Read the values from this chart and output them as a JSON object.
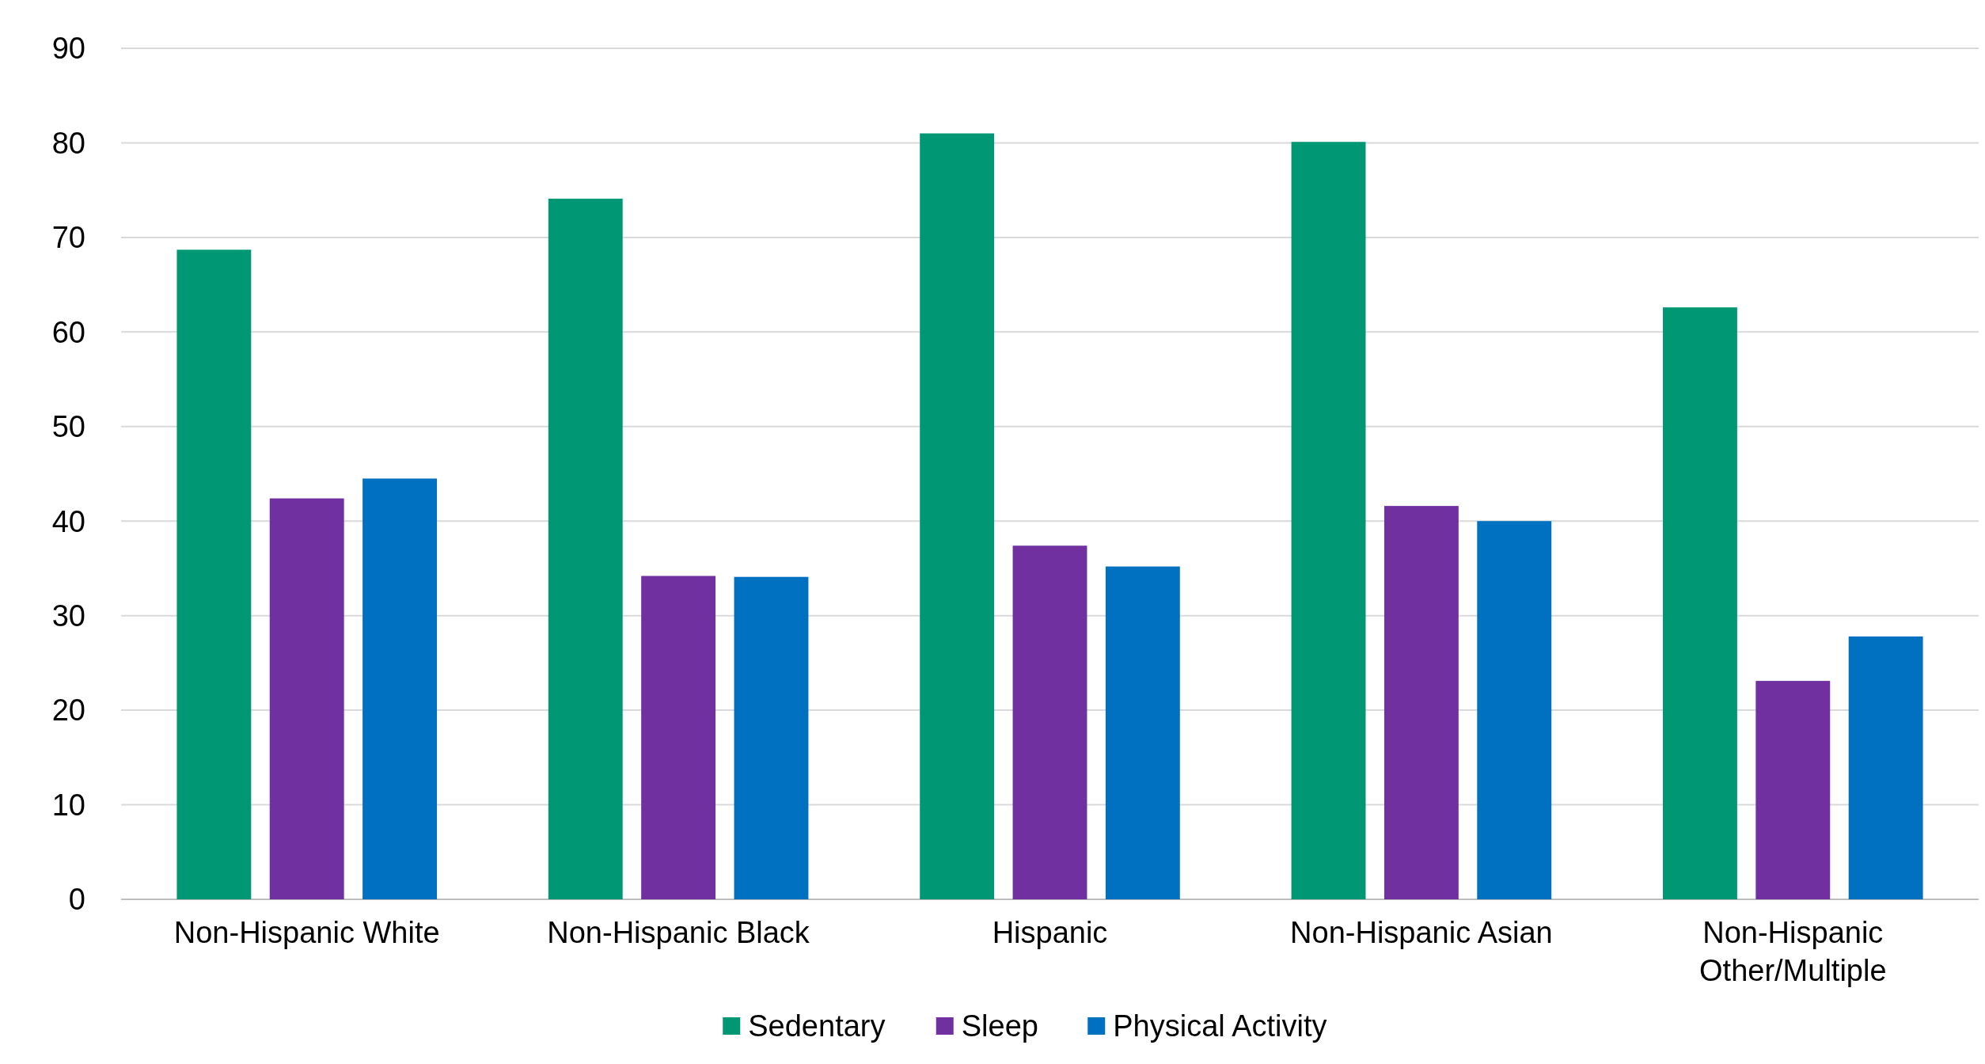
{
  "chart_data": {
    "type": "bar",
    "categories": [
      "Non-Hispanic White",
      "Non-Hispanic Black",
      "Hispanic",
      "Non-Hispanic Asian",
      "Non-Hispanic Other/Multiple"
    ],
    "series": [
      {
        "name": "Sedentary",
        "color": "#009874",
        "values": [
          68.7,
          74.1,
          81.0,
          80.1,
          62.6
        ]
      },
      {
        "name": "Sleep",
        "color": "#7030a0",
        "values": [
          42.4,
          34.2,
          37.4,
          41.6,
          23.1
        ]
      },
      {
        "name": "Physical Activity",
        "color": "#0070c0",
        "values": [
          44.5,
          34.1,
          35.2,
          40.0,
          27.8
        ]
      }
    ],
    "ylim": [
      0,
      90
    ],
    "yticks": [
      0,
      10,
      20,
      30,
      40,
      50,
      60,
      70,
      80,
      90
    ],
    "grid": "y",
    "legend": "bottom"
  }
}
